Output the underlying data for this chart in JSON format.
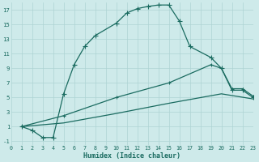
{
  "xlabel": "Humidex (Indice chaleur)",
  "bg_color": "#ceeaea",
  "line_color": "#1a6b60",
  "grid_color": "#aed4d4",
  "yticks": [
    -1,
    1,
    3,
    5,
    7,
    9,
    11,
    13,
    15,
    17
  ],
  "xticks": [
    0,
    1,
    2,
    3,
    4,
    5,
    6,
    7,
    8,
    9,
    10,
    11,
    12,
    13,
    14,
    15,
    16,
    17,
    18,
    19,
    20,
    21,
    22,
    23
  ],
  "xlim": [
    0,
    23
  ],
  "ylim": [
    -1.5,
    18.0
  ],
  "line1_x": [
    1,
    2,
    3,
    4,
    5,
    6,
    7,
    8,
    10,
    11,
    12,
    13,
    14,
    15,
    16,
    17,
    19,
    20,
    21,
    22,
    23
  ],
  "line1_y": [
    1,
    0.5,
    -0.5,
    -0.5,
    5.5,
    9.5,
    12.0,
    13.5,
    15.2,
    16.6,
    17.2,
    17.5,
    17.7,
    17.7,
    15.5,
    12.0,
    10.5,
    9.0,
    6.0,
    6.0,
    5.0
  ],
  "line2_x": [
    1,
    5,
    10,
    15,
    19,
    20,
    21,
    22,
    23
  ],
  "line2_y": [
    1,
    2.5,
    5.0,
    7.0,
    9.5,
    9.0,
    6.2,
    6.2,
    5.2
  ],
  "line3_x": [
    1,
    5,
    10,
    15,
    20,
    23
  ],
  "line3_y": [
    1,
    1.5,
    2.8,
    4.2,
    5.5,
    4.8
  ]
}
